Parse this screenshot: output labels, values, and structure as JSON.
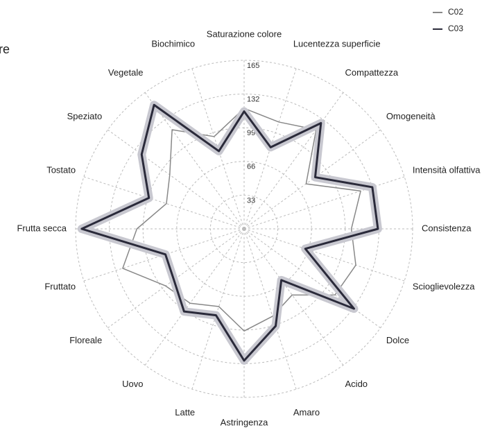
{
  "chart_data": {
    "type": "radar",
    "title": "re",
    "categories": [
      "Saturazione colore",
      "Lucentezza superficie",
      "Compattezza",
      "Omogeneità",
      "Intensità olfattiva",
      "Consistenza",
      "Scioglievolezza",
      "Dolce",
      "Acido",
      "Amaro",
      "Astringenza",
      "Latte",
      "Uovo",
      "Floreale",
      "Fruttato",
      "Frutta secca",
      "Tostato",
      "Speziato",
      "Vegetale",
      "Biochimico"
    ],
    "series": [
      {
        "name": "C02",
        "color": "#888888",
        "values": [
          118,
          110,
          120,
          75,
          120,
          105,
          115,
          110,
          80,
          90,
          100,
          80,
          90,
          95,
          125,
          105,
          80,
          90,
          120,
          95
        ]
      },
      {
        "name": "C03",
        "color": "#2a2a3a",
        "values": [
          115,
          84,
          128,
          86,
          132,
          131,
          63,
          133,
          62,
          100,
          129,
          89,
          100,
          85,
          81,
          159,
          98,
          124,
          150,
          80
        ]
      }
    ],
    "ylim": [
      0,
      165
    ],
    "yticks": [
      33,
      66,
      99,
      132,
      165
    ],
    "grid": true,
    "legend": "top-right"
  }
}
